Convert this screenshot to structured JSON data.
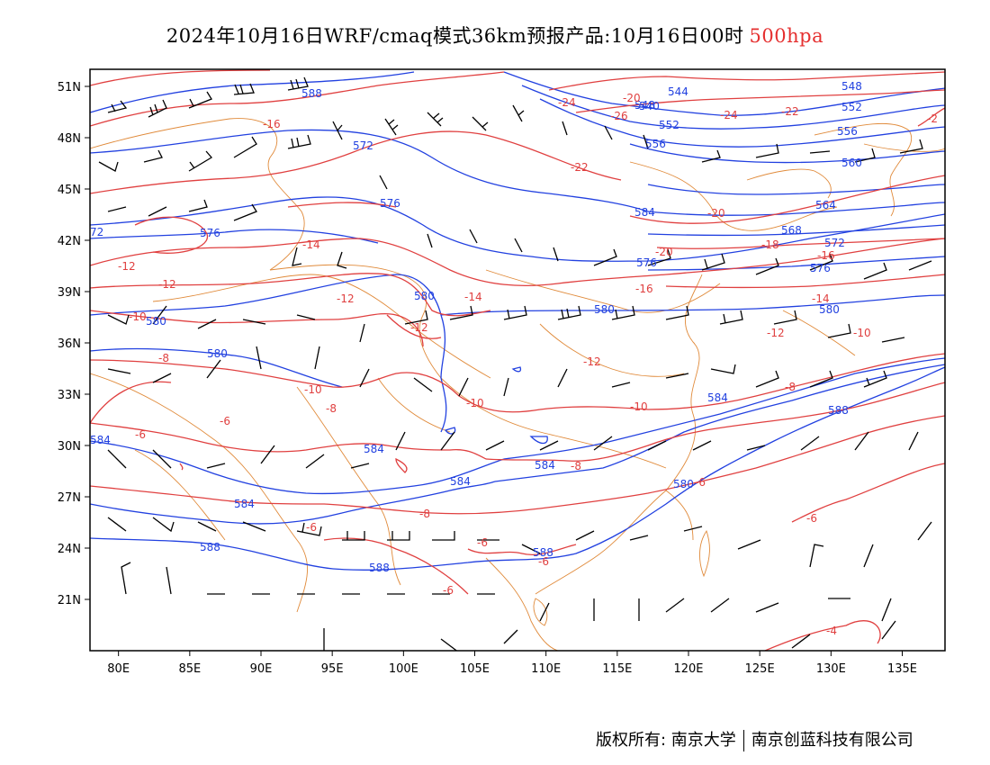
{
  "header": {
    "title": "2024年10月16日WRF/cmaq模式36km预报产品:10月16日00时",
    "level": "500hpa"
  },
  "axes": {
    "lon_labels": [
      "80E",
      "85E",
      "90E",
      "95E",
      "100E",
      "105E",
      "110E",
      "115E",
      "120E",
      "125E",
      "130E",
      "135E"
    ],
    "lon_values": [
      80,
      85,
      90,
      95,
      100,
      105,
      110,
      115,
      120,
      125,
      130,
      135
    ],
    "lat_labels": [
      "51N",
      "48N",
      "45N",
      "42N",
      "39N",
      "36N",
      "33N",
      "30N",
      "27N",
      "24N",
      "21N"
    ],
    "lat_values": [
      51,
      48,
      45,
      42,
      39,
      36,
      33,
      30,
      27,
      24,
      21
    ],
    "lon_range": [
      78,
      138
    ],
    "lat_range": [
      18,
      52
    ]
  },
  "geopotential_contours": {
    "color": "#2241e0",
    "labels": [
      "588",
      "572",
      "576",
      "576",
      "580",
      "580",
      "580",
      "584",
      "584",
      "588",
      "588",
      "584",
      "584",
      "588",
      "548",
      "544",
      "540",
      "552",
      "556",
      "548",
      "552",
      "556",
      "560",
      "564",
      "568",
      "572",
      "576",
      "576",
      "580",
      "584",
      "588",
      "584",
      "72",
      "584",
      "580"
    ]
  },
  "temperature_contours": {
    "color": "#e04040",
    "labels": [
      "-16",
      "-14",
      "-12",
      "-12",
      "-10",
      "-12",
      "-12",
      "-14",
      "-8",
      "-6",
      "-6",
      "-10",
      "-8",
      "-10",
      "-12",
      "-10",
      "-6",
      "-8",
      "-6",
      "-8",
      "-6",
      "-4",
      "-6",
      "-20",
      "-24",
      "-26",
      "-24",
      "-22",
      "-22",
      "-20",
      "-20",
      "-18",
      "-16",
      "-16",
      "-14",
      "-12",
      "-10",
      "-8",
      "-6",
      "-4",
      "-2"
    ]
  },
  "copyright": {
    "left": "版权所有: 南京大学",
    "right": "南京创蓝科技有限公司"
  }
}
